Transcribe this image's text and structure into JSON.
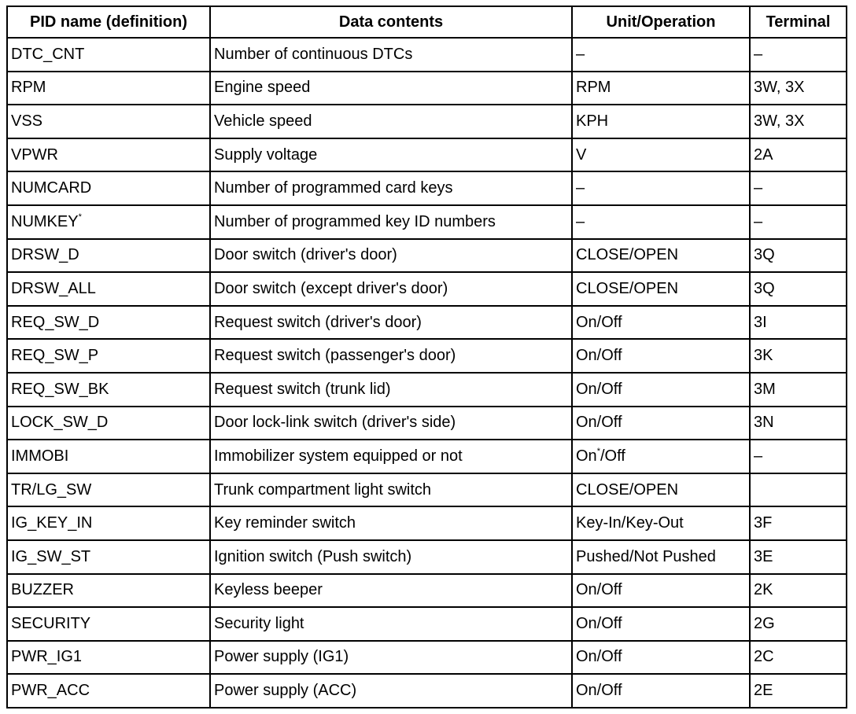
{
  "table": {
    "header": [
      "PID name (definition)",
      "Data contents",
      "Unit/Operation",
      "Terminal"
    ],
    "rows": [
      [
        "DTC_CNT",
        "Number of continuous DTCs",
        "–",
        "–"
      ],
      [
        "RPM",
        "Engine speed",
        "RPM",
        "3W, 3X"
      ],
      [
        "VSS",
        "Vehicle speed",
        "KPH",
        "3W, 3X"
      ],
      [
        "VPWR",
        "Supply voltage",
        "V",
        "2A"
      ],
      [
        "NUMCARD",
        "Number of programmed card keys",
        "–",
        "–"
      ],
      [
        [
          {
            "text": "NUMKEY"
          },
          {
            "sup": "*"
          }
        ],
        "Number of programmed key ID numbers",
        "–",
        "–"
      ],
      [
        "DRSW_D",
        "Door switch (driver's door)",
        "CLOSE/OPEN",
        "3Q"
      ],
      [
        "DRSW_ALL",
        "Door switch (except driver's door)",
        "CLOSE/OPEN",
        "3Q"
      ],
      [
        "REQ_SW_D",
        "Request switch (driver's door)",
        "On/Off",
        "3I"
      ],
      [
        "REQ_SW_P",
        "Request switch (passenger's door)",
        "On/Off",
        "3K"
      ],
      [
        "REQ_SW_BK",
        "Request switch (trunk lid)",
        "On/Off",
        "3M"
      ],
      [
        "LOCK_SW_D",
        "Door lock-link switch (driver's side)",
        "On/Off",
        "3N"
      ],
      [
        "IMMOBI",
        "Immobilizer system equipped or not",
        [
          {
            "text": "On"
          },
          {
            "sup": "*"
          },
          {
            "text": "/Off"
          }
        ],
        "–"
      ],
      [
        "TR/LG_SW",
        "Trunk compartment light switch",
        "CLOSE/OPEN",
        null
      ],
      [
        "IG_KEY_IN",
        "Key reminder switch",
        "Key-In/Key-Out",
        "3F"
      ],
      [
        "IG_SW_ST",
        "Ignition switch (Push switch)",
        "Pushed/Not Pushed",
        "3E"
      ],
      [
        "BUZZER",
        "Keyless beeper",
        "On/Off",
        "2K"
      ],
      [
        "SECURITY",
        "Security light",
        "On/Off",
        "2G"
      ],
      [
        "PWR_IG1",
        "Power supply (IG1)",
        "On/Off",
        "2C"
      ],
      [
        "PWR_ACC",
        "Power supply (ACC)",
        "On/Off",
        "2E"
      ]
    ]
  }
}
